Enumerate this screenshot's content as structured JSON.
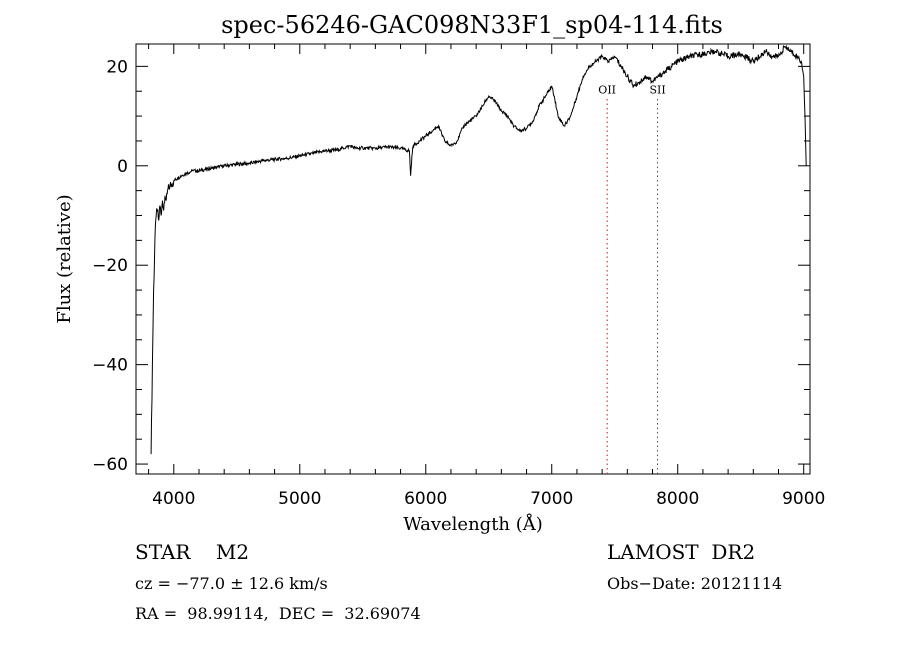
{
  "chart_data": {
    "type": "line",
    "title": "spec-56246-GAC098N33F1_sp04-114.fits",
    "xlabel": "Wavelength (Å)",
    "ylabel": "Flux (relative)",
    "xlim": [
      3700,
      9050
    ],
    "ylim": [
      -62,
      24.5
    ],
    "xticks": [
      4000,
      5000,
      6000,
      7000,
      8000,
      9000
    ],
    "yticks": [
      -60,
      -40,
      -20,
      0,
      20
    ],
    "grid": false,
    "series_color": "#000000",
    "line_marker_color": "#ff0000",
    "series": [
      {
        "x": [
          3820,
          3830,
          3840,
          3850,
          3860,
          3870,
          3880,
          3890,
          3900,
          3910,
          3920,
          3930,
          3940,
          3950,
          3970,
          4000,
          4030,
          4060,
          4100,
          4150,
          4200,
          4300,
          4400,
          4500,
          4600,
          4700,
          4800,
          4900,
          5000,
          5100,
          5200,
          5300,
          5400,
          5450,
          5500,
          5600,
          5700,
          5800,
          5870,
          5880,
          5890,
          5900,
          5950,
          6000,
          6050,
          6100,
          6150,
          6200,
          6250,
          6300,
          6350,
          6400,
          6450,
          6500,
          6550,
          6600,
          6650,
          6700,
          6750,
          6800,
          6850,
          6900,
          6950,
          7000,
          7020,
          7050,
          7100,
          7150,
          7200,
          7250,
          7300,
          7350,
          7400,
          7450,
          7500,
          7550,
          7600,
          7650,
          7700,
          7750,
          7800,
          7850,
          7900,
          8000,
          8100,
          8200,
          8300,
          8400,
          8500,
          8600,
          8700,
          8750,
          8800,
          8850,
          8900,
          8950,
          8980,
          9000,
          9010,
          9020
        ],
        "y": [
          -58,
          -40,
          -25,
          -15,
          -10,
          -9,
          -11,
          -8,
          -10,
          -7,
          -9,
          -6,
          -7,
          -5,
          -4,
          -3,
          -2.5,
          -2,
          -1.5,
          -1,
          -1,
          -0.5,
          0,
          0.3,
          0.5,
          1,
          1.3,
          1.5,
          2,
          2.5,
          3,
          3.2,
          4,
          3.5,
          3.6,
          3.5,
          3.8,
          3.5,
          3,
          -2,
          2,
          4,
          5,
          6,
          7,
          8,
          5,
          4,
          5,
          8,
          9,
          10,
          12,
          14,
          13,
          11,
          10,
          8,
          7,
          7.5,
          9,
          12,
          14,
          16,
          14,
          10,
          8,
          10,
          14,
          18,
          20,
          21,
          22,
          21,
          22,
          20,
          18,
          16,
          17,
          18,
          17,
          18,
          19,
          21,
          22,
          22.5,
          23,
          22,
          22.5,
          21,
          23,
          22,
          22,
          24,
          23,
          22,
          21,
          18,
          10,
          0
        ]
      }
    ],
    "annotations": [
      {
        "label": "OII",
        "x": 7440
      },
      {
        "label": "SII",
        "x": 7840
      }
    ]
  },
  "info": {
    "object_class": "STAR    M2",
    "survey": "LAMOST  DR2",
    "cz": "cz = −77.0 ± 12.6 km/s",
    "obs_date": "Obs−Date: 20121114",
    "coords": "RA =  98.99114,  DEC =  32.69074"
  }
}
